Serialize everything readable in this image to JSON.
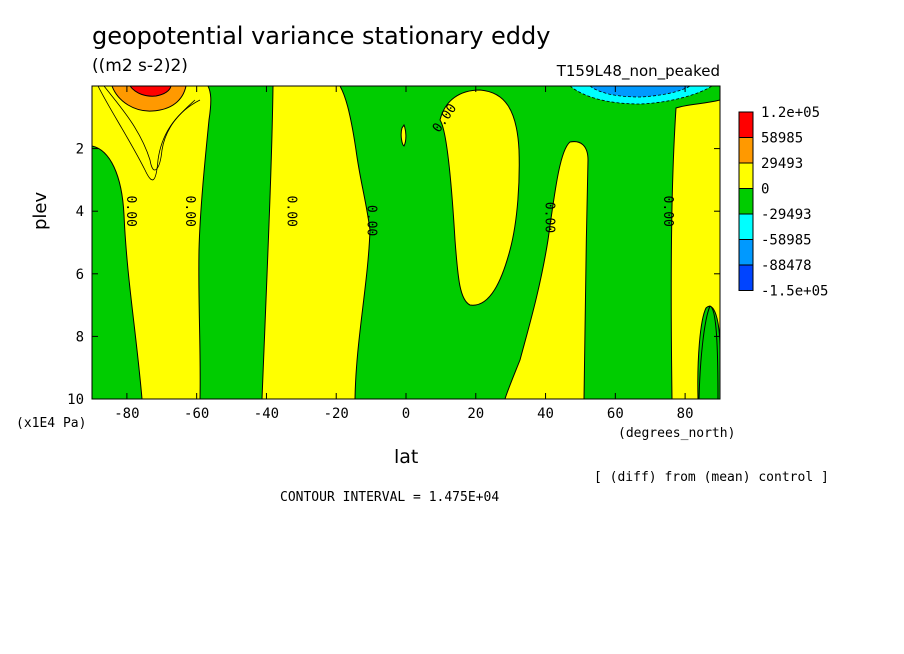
{
  "header": {
    "title": "geopotential variance stationary eddy",
    "units": "((m2 s-2)2)",
    "run_name": "T159L48_non_peaked"
  },
  "footer": {
    "diff_note": "[ (diff) from (mean) control ]",
    "contour_interval": "CONTOUR INTERVAL = 1.475E+04"
  },
  "chart_data": {
    "type": "heatmap",
    "title": "geopotential variance stationary eddy",
    "subtitle": "((m2 s-2)2)",
    "xlabel": "lat",
    "x_unit": "(degrees_north)",
    "ylabel": "plev",
    "y_unit": "(x1E4 Pa)",
    "xlim": [
      -90,
      90
    ],
    "ylim": [
      10,
      0
    ],
    "x_ticks": [
      -80,
      -60,
      -40,
      -20,
      0,
      20,
      40,
      60,
      80
    ],
    "x_tick_labels": [
      "-80",
      "-60",
      "-40",
      "-20",
      "0",
      "20",
      "40",
      "60",
      "80"
    ],
    "y_ticks": [
      2,
      4,
      6,
      8,
      10
    ],
    "y_tick_labels": [
      "2",
      "4",
      "6",
      "8",
      "10"
    ],
    "contour_labels": [
      "0.00",
      "0.00",
      "0.00",
      "0.00",
      "0.00",
      "0.00",
      "0.00"
    ],
    "colorbar": {
      "colors": [
        "#ff0000",
        "#ff9900",
        "#ffff00",
        "#00cc00",
        "#00ffff",
        "#0099ff",
        "#0044ff"
      ],
      "labels": [
        "1.2e+05",
        "58985",
        "29493",
        "0",
        "-29493",
        "-58985",
        "-88478",
        "-1.5e+05"
      ]
    },
    "regions": [
      {
        "value_sign": "positive",
        "lat_range": [
          -90,
          -60
        ],
        "note": "broad positive band, maximum > 1.2e+05 near -72 lat at top"
      },
      {
        "value_sign": "positive",
        "lat_range": [
          -38,
          -13
        ]
      },
      {
        "value_sign": "positive",
        "lat_range": [
          10,
          32
        ],
        "plev_range": [
          0,
          7
        ]
      },
      {
        "value_sign": "positive",
        "lat_range": [
          28,
          49
        ]
      },
      {
        "value_sign": "positive",
        "lat_range": [
          76,
          90
        ]
      },
      {
        "value_sign": "negative",
        "lat_range": [
          50,
          90
        ],
        "plev_range": [
          0,
          0.5
        ],
        "note": "negative down to about -58985 near top"
      }
    ]
  }
}
